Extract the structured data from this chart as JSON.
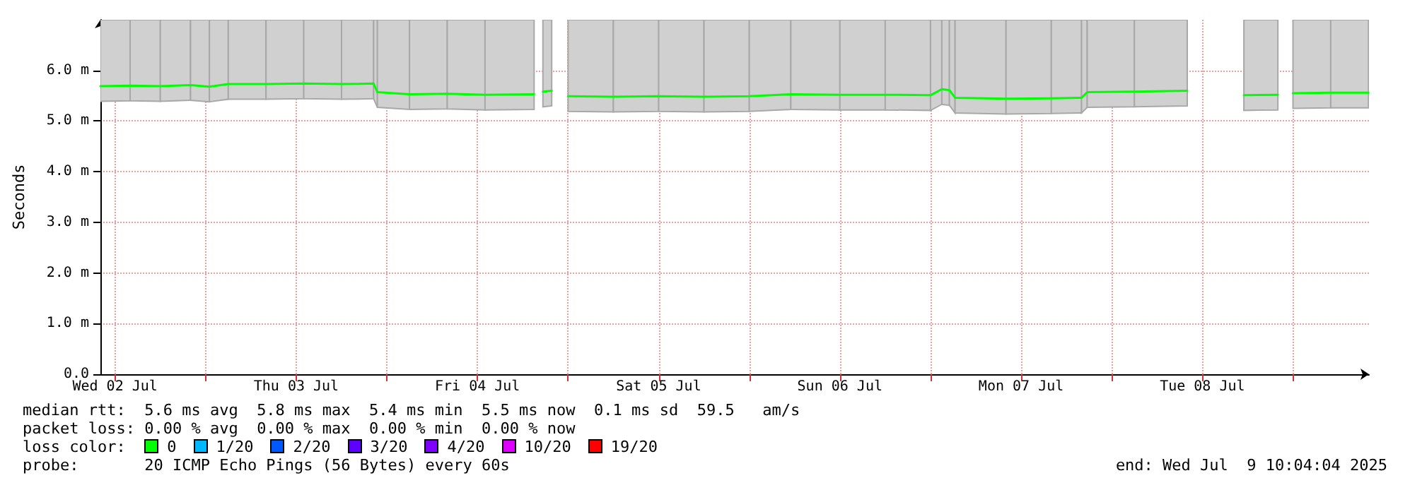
{
  "chart_data": {
    "type": "line",
    "ylabel": "Seconds",
    "legend_title": "loss color:",
    "legend": "bottom",
    "xlim": [
      "2025-07-02T10:04",
      "2025-07-09T10:04"
    ],
    "xticks": [
      {
        "value": "2025-07-02T12:00",
        "label": "Wed 02 Jul"
      },
      {
        "value": "2025-07-03T00:00",
        "label": null
      },
      {
        "value": "2025-07-03T12:00",
        "label": "Thu 03 Jul"
      },
      {
        "value": "2025-07-04T00:00",
        "label": null
      },
      {
        "value": "2025-07-04T12:00",
        "label": "Fri 04 Jul"
      },
      {
        "value": "2025-07-05T00:00",
        "label": null
      },
      {
        "value": "2025-07-05T12:00",
        "label": "Sat 05 Jul"
      },
      {
        "value": "2025-07-06T00:00",
        "label": null
      },
      {
        "value": "2025-07-06T12:00",
        "label": "Sun 06 Jul"
      },
      {
        "value": "2025-07-07T00:00",
        "label": null
      },
      {
        "value": "2025-07-07T12:00",
        "label": "Mon 07 Jul"
      },
      {
        "value": "2025-07-08T00:00",
        "label": null
      },
      {
        "value": "2025-07-08T12:00",
        "label": "Tue 08 Jul"
      },
      {
        "value": "2025-07-09T00:00",
        "label": null
      }
    ],
    "ylim": [
      0,
      7.0
    ],
    "yticks": [
      {
        "value": 0,
        "label": "0.0"
      },
      {
        "value": 1,
        "label": "1.0 m"
      },
      {
        "value": 2,
        "label": "2.0 m"
      },
      {
        "value": 3,
        "label": "3.0 m"
      },
      {
        "value": 4,
        "label": "4.0 m"
      },
      {
        "value": 5,
        "label": "5.0 m"
      },
      {
        "value": 6,
        "label": "6.0 m"
      }
    ],
    "grid": true,
    "marker": "none",
    "line_style": "solid",
    "x": [
      "2025-07-02T10:04",
      "2025-07-02T14:00",
      "2025-07-02T18:00",
      "2025-07-02T22:00",
      "2025-07-03T00:30",
      "2025-07-03T03:00",
      "2025-07-03T08:00",
      "2025-07-03T13:00",
      "2025-07-03T18:00",
      "2025-07-03T22:15",
      "2025-07-03T22:45",
      "2025-07-04T03:00",
      "2025-07-04T08:00",
      "2025-07-04T13:00",
      "2025-07-04T19:30",
      "2025-07-04T20:00",
      "2025-07-04T20:40",
      "2025-07-04T21:50",
      "2025-07-04T22:30",
      "2025-07-05T00:00",
      "2025-07-05T06:00",
      "2025-07-05T12:00",
      "2025-07-05T18:00",
      "2025-07-06T00:00",
      "2025-07-06T05:30",
      "2025-07-06T12:00",
      "2025-07-06T18:00",
      "2025-07-07T00:00",
      "2025-07-07T01:30",
      "2025-07-07T02:30",
      "2025-07-07T03:15",
      "2025-07-07T10:00",
      "2025-07-07T16:00",
      "2025-07-07T20:00",
      "2025-07-07T20:45",
      "2025-07-08T03:00",
      "2025-07-08T10:00",
      "2025-07-08T13:00",
      "2025-07-08T17:30",
      "2025-07-08T22:00",
      "2025-07-08T23:00",
      "2025-07-09T00:00",
      "2025-07-09T05:00",
      "2025-07-09T10:00"
    ],
    "series": [
      {
        "name": "0",
        "color": "#00ff00",
        "values": [
          5.69,
          5.7,
          5.69,
          5.71,
          5.68,
          5.73,
          5.73,
          5.74,
          5.73,
          5.74,
          5.57,
          5.53,
          5.54,
          5.52,
          5.53,
          null,
          5.58,
          5.6,
          null,
          5.49,
          5.48,
          5.49,
          5.48,
          5.49,
          5.53,
          5.52,
          5.52,
          5.51,
          5.63,
          5.61,
          5.46,
          5.44,
          5.45,
          5.46,
          5.57,
          5.58,
          5.6,
          null,
          5.51,
          5.52,
          null,
          5.55,
          5.56,
          5.56
        ],
        "lower": [
          5.39,
          5.4,
          5.39,
          5.41,
          5.38,
          5.43,
          5.43,
          5.44,
          5.43,
          5.44,
          5.27,
          5.23,
          5.24,
          5.22,
          5.23,
          null,
          5.28,
          5.3,
          null,
          5.19,
          5.18,
          5.19,
          5.18,
          5.19,
          5.23,
          5.22,
          5.22,
          5.21,
          5.33,
          5.31,
          5.16,
          5.14,
          5.15,
          5.16,
          5.27,
          5.28,
          5.3,
          null,
          5.21,
          5.22,
          null,
          5.25,
          5.26,
          5.26
        ],
        "upper": [
          7.0,
          7.0,
          7.0,
          7.0,
          7.0,
          7.0,
          7.0,
          7.0,
          7.0,
          7.0,
          7.0,
          7.0,
          7.0,
          7.0,
          7.0,
          null,
          7.0,
          7.0,
          null,
          7.0,
          7.0,
          7.0,
          7.0,
          7.0,
          7.0,
          7.0,
          7.0,
          7.0,
          7.0,
          7.0,
          7.0,
          7.0,
          7.0,
          7.0,
          7.0,
          7.0,
          7.0,
          null,
          7.0,
          7.0,
          null,
          7.0,
          7.0,
          7.0
        ]
      },
      {
        "name": "1/20",
        "color": "#00b8ff",
        "values": [
          null,
          null,
          null,
          null,
          null,
          null,
          null,
          null,
          null,
          null,
          null,
          null,
          null,
          null,
          null,
          null,
          null,
          null,
          null,
          null,
          null,
          null,
          null,
          null,
          null,
          null,
          null,
          null,
          null,
          null,
          null,
          null,
          null,
          null,
          null,
          null,
          null,
          null,
          null,
          null,
          null,
          null,
          null,
          null
        ]
      },
      {
        "name": "2/20",
        "color": "#0059ff",
        "values": [
          null,
          null,
          null,
          null,
          null,
          null,
          null,
          null,
          null,
          null,
          null,
          null,
          null,
          null,
          null,
          null,
          null,
          null,
          null,
          null,
          null,
          null,
          null,
          null,
          null,
          null,
          null,
          null,
          null,
          null,
          null,
          null,
          null,
          null,
          null,
          null,
          null,
          null,
          null,
          null,
          null,
          null,
          null,
          null
        ]
      },
      {
        "name": "3/20",
        "color": "#5e00ff",
        "values": [
          null,
          null,
          null,
          null,
          null,
          null,
          null,
          null,
          null,
          null,
          null,
          null,
          null,
          null,
          null,
          null,
          null,
          null,
          null,
          null,
          null,
          null,
          null,
          null,
          null,
          null,
          null,
          null,
          null,
          null,
          null,
          null,
          null,
          null,
          null,
          null,
          null,
          null,
          null,
          null,
          null,
          null,
          null,
          null
        ]
      },
      {
        "name": "4/20",
        "color": "#7e00ff",
        "values": [
          null,
          null,
          null,
          null,
          null,
          null,
          null,
          null,
          null,
          null,
          null,
          null,
          null,
          null,
          null,
          null,
          null,
          null,
          null,
          null,
          null,
          null,
          null,
          null,
          null,
          null,
          null,
          null,
          null,
          null,
          null,
          null,
          null,
          null,
          null,
          null,
          null,
          null,
          null,
          null,
          null,
          null,
          null,
          null
        ]
      },
      {
        "name": "10/20",
        "color": "#dd00ff",
        "values": [
          null,
          null,
          null,
          null,
          null,
          null,
          null,
          null,
          null,
          null,
          null,
          null,
          null,
          null,
          null,
          null,
          null,
          null,
          null,
          null,
          null,
          null,
          null,
          null,
          null,
          null,
          null,
          null,
          null,
          null,
          null,
          null,
          null,
          null,
          null,
          null,
          null,
          null,
          null,
          null,
          null,
          null,
          null,
          null
        ]
      },
      {
        "name": "19/20",
        "color": "#ff0000",
        "values": [
          null,
          null,
          null,
          null,
          null,
          null,
          null,
          null,
          null,
          null,
          null,
          null,
          null,
          null,
          null,
          null,
          null,
          null,
          null,
          null,
          null,
          null,
          null,
          null,
          null,
          null,
          null,
          null,
          null,
          null,
          null,
          null,
          null,
          null,
          null,
          null,
          null,
          null,
          null,
          null,
          null,
          null,
          null,
          null
        ]
      }
    ],
    "annotations": [
      "median rtt:  5.6 ms avg  5.8 ms max  5.4 ms min  5.5 ms now  0.1 ms sd  59.5   am/s",
      "packet loss: 0.00 % avg  0.00 % max  0.00 % min  0.00 % now",
      "probe:       20 ICMP Echo Pings (56 Bytes) every 60s",
      "end: Wed Jul  9 10:04:04 2025"
    ]
  }
}
